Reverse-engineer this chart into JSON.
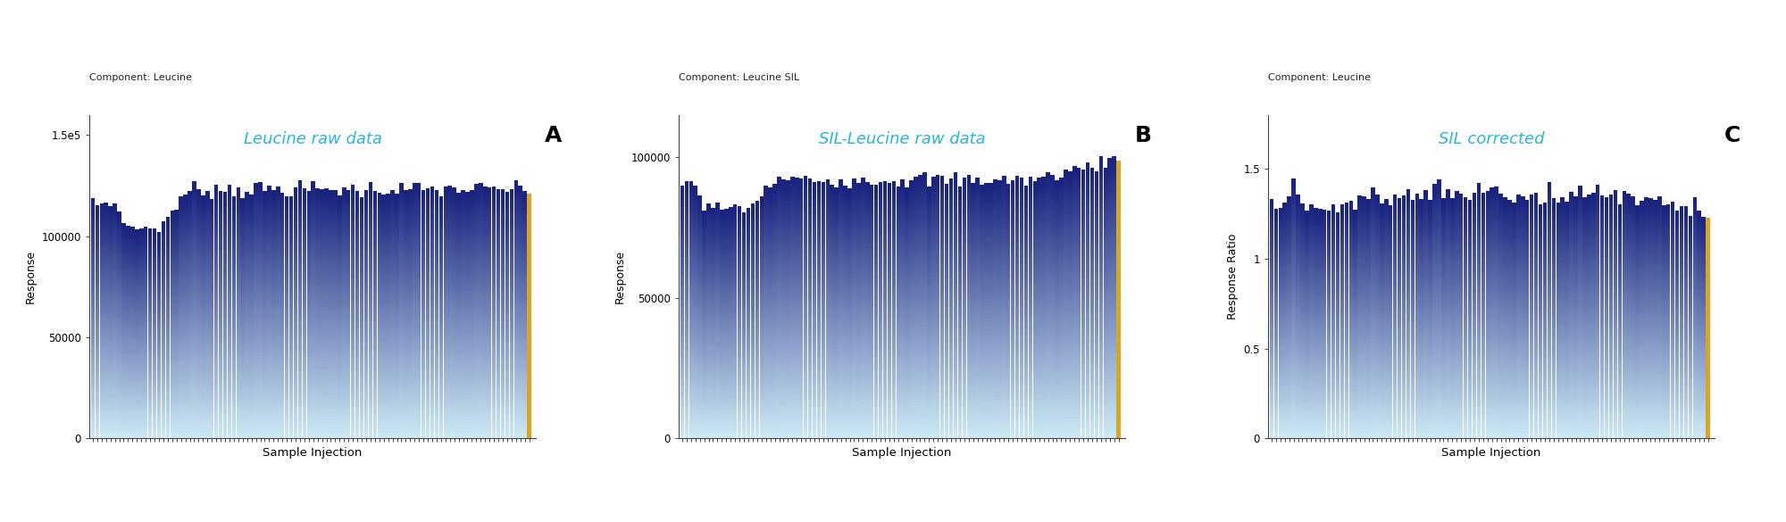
{
  "n_injections": 100,
  "panel_A": {
    "title": "Leucine raw data",
    "component_label": "Component: Leucine",
    "panel_letter": "A",
    "ylabel": "Response",
    "xlabel": "Sample Injection",
    "ylim": [
      0,
      160000
    ],
    "yticks": [
      0,
      50000,
      100000,
      150000
    ],
    "ytick_labels": [
      "0",
      "50000",
      "100000",
      "1.5e5"
    ],
    "last_bar_color": "#DAA520",
    "bar_color_top": "#1a237e",
    "bar_color_bottom": "#cce8f4"
  },
  "panel_B": {
    "title": "SIL-Leucine raw data",
    "component_label": "Component: Leucine SIL",
    "panel_letter": "B",
    "ylabel": "Response",
    "xlabel": "Sample Injection",
    "ylim": [
      0,
      115000
    ],
    "yticks": [
      0,
      50000,
      100000
    ],
    "ytick_labels": [
      "0",
      "50000",
      "100000"
    ],
    "last_bar_color": "#DAA520",
    "bar_color_top": "#1a237e",
    "bar_color_bottom": "#cce8f4"
  },
  "panel_C": {
    "title": "SIL corrected",
    "component_label": "Component: Leucine",
    "panel_letter": "C",
    "ylabel": "Response Ratio",
    "xlabel": "Sample Injection",
    "ylim": [
      0,
      1.8
    ],
    "yticks": [
      0,
      0.5,
      1.0,
      1.5
    ],
    "ytick_labels": [
      "0",
      "0.5",
      "1",
      "1.5"
    ],
    "last_bar_color": "#DAA520",
    "bar_color_top": "#1a237e",
    "bar_color_bottom": "#cce8f4"
  },
  "title_color": "#29b6d8",
  "letter_color": "#000000",
  "component_label_color": "#222222",
  "background_color": "#ffffff",
  "bar_gradient_top": "#1a237e",
  "bar_gradient_bottom": "#cce8f4",
  "fig_width": 20.0,
  "fig_height": 5.85
}
